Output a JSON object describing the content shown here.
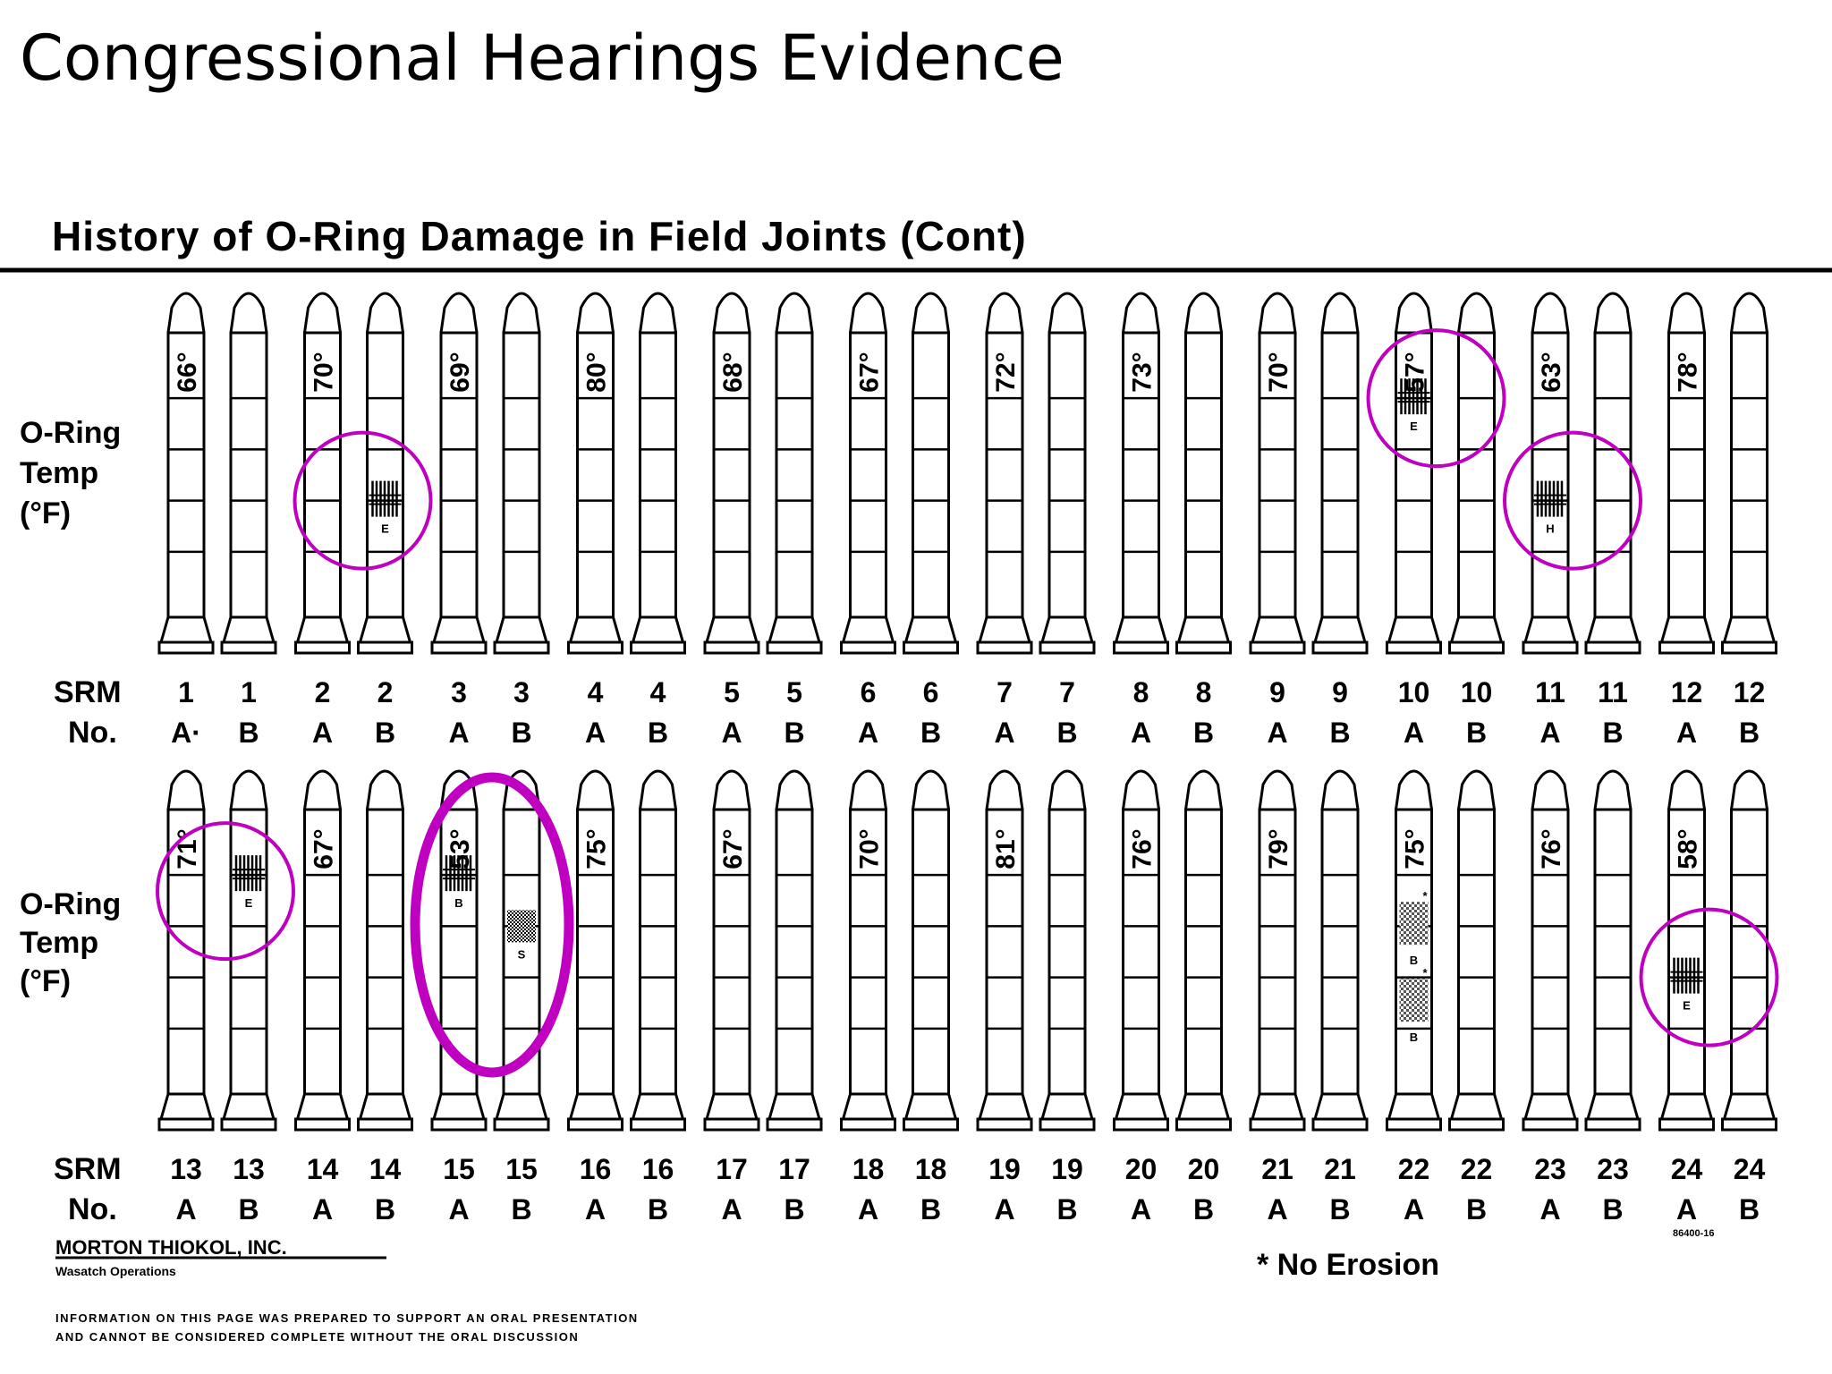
{
  "slide_title": "Congressional Hearings Evidence",
  "chart_data": {
    "type": "diagram",
    "title": "History of O-Ring Damage in Field Joints (Cont)",
    "row_label_lines": [
      "O-Ring",
      "Temp",
      "(°F)"
    ],
    "srm_label_lines": [
      "SRM",
      "No."
    ],
    "legend": "* No Erosion",
    "company": "MORTON THIOKOL, INC.",
    "division": "Wasatch Operations",
    "doc_number": "86400-16",
    "disclaimer_lines": [
      "INFORMATION ON THIS PAGE WAS PREPARED TO SUPPORT AN ORAL PRESENTATION",
      "AND CANNOT BE CONSIDERED COMPLETE WITHOUT THE ORAL DISCUSSION"
    ],
    "highlight_color": "#c000c0",
    "rows": [
      {
        "flights": [
          {
            "srm": "1",
            "temp": "66°",
            "sides": [
              "A·",
              "B"
            ]
          },
          {
            "srm": "2",
            "temp": "70°",
            "sides": [
              "A",
              "B"
            ]
          },
          {
            "srm": "3",
            "temp": "69°",
            "sides": [
              "A",
              "B"
            ]
          },
          {
            "srm": "4",
            "temp": "80°",
            "sides": [
              "A",
              "B"
            ]
          },
          {
            "srm": "5",
            "temp": "68°",
            "sides": [
              "A",
              "B"
            ]
          },
          {
            "srm": "6",
            "temp": "67°",
            "sides": [
              "A",
              "B"
            ]
          },
          {
            "srm": "7",
            "temp": "72°",
            "sides": [
              "A",
              "B"
            ]
          },
          {
            "srm": "8",
            "temp": "73°",
            "sides": [
              "A",
              "B"
            ]
          },
          {
            "srm": "9",
            "temp": "70°",
            "sides": [
              "A",
              "B"
            ]
          },
          {
            "srm": "10",
            "temp": "57°",
            "sides": [
              "A",
              "B"
            ]
          },
          {
            "srm": "11",
            "temp": "63°",
            "sides": [
              "A",
              "B"
            ]
          },
          {
            "srm": "12",
            "temp": "78°",
            "sides": [
              "A",
              "B"
            ]
          }
        ]
      },
      {
        "flights": [
          {
            "srm": "13",
            "temp": "71°",
            "sides": [
              "A",
              "B"
            ]
          },
          {
            "srm": "14",
            "temp": "67°",
            "sides": [
              "A",
              "B"
            ]
          },
          {
            "srm": "15",
            "temp": "53°",
            "sides": [
              "A",
              "B"
            ]
          },
          {
            "srm": "16",
            "temp": "75°",
            "sides": [
              "A",
              "B"
            ]
          },
          {
            "srm": "17",
            "temp": "67°",
            "sides": [
              "A",
              "B"
            ]
          },
          {
            "srm": "18",
            "temp": "70°",
            "sides": [
              "A",
              "B"
            ]
          },
          {
            "srm": "19",
            "temp": "81°",
            "sides": [
              "A",
              "B"
            ]
          },
          {
            "srm": "20",
            "temp": "76°",
            "sides": [
              "A",
              "B"
            ]
          },
          {
            "srm": "21",
            "temp": "79°",
            "sides": [
              "A",
              "B"
            ]
          },
          {
            "srm": "22",
            "temp": "75°",
            "sides": [
              "A",
              "B"
            ]
          },
          {
            "srm": "23",
            "temp": "76°",
            "sides": [
              "A",
              "B"
            ]
          },
          {
            "srm": "24",
            "temp": "58°",
            "sides": [
              "A",
              "B"
            ]
          }
        ]
      }
    ],
    "damage_marks": [
      {
        "srm": "2",
        "side": "B",
        "segment": 3,
        "kind": "erosion",
        "labels": [
          "E"
        ]
      },
      {
        "srm": "10",
        "side": "A",
        "segment": 1,
        "kind": "erosion",
        "labels": [
          "E"
        ]
      },
      {
        "srm": "11",
        "side": "A",
        "segment": 3,
        "kind": "heat",
        "labels": [
          "H"
        ]
      },
      {
        "srm": "13",
        "side": "B",
        "segment": 1,
        "kind": "erosion",
        "labels": [
          "E"
        ]
      },
      {
        "srm": "15",
        "side": "A",
        "segment": 1,
        "kind": "blowby",
        "labels": [
          "B"
        ]
      },
      {
        "srm": "15",
        "side": "B",
        "segment": 2,
        "kind": "soot",
        "labels": [
          "S"
        ]
      },
      {
        "srm": "22",
        "side": "A",
        "segment": 2,
        "kind": "blowby",
        "labels": [
          "B",
          "B"
        ]
      },
      {
        "srm": "24",
        "side": "A",
        "segment": 3,
        "kind": "erosion",
        "labels": [
          "E"
        ]
      }
    ],
    "highlighted_joints": [
      {
        "srm": "2",
        "side": "B",
        "segment": 3
      },
      {
        "srm": "10",
        "side": "A",
        "segment": 1
      },
      {
        "srm": "11",
        "side": "A",
        "segment": 3
      },
      {
        "srm": "13",
        "side": "B",
        "segment": 1
      },
      {
        "srm": "15",
        "side": "AB",
        "segment": 1
      },
      {
        "srm": "24",
        "side": "A",
        "segment": 3
      }
    ]
  }
}
